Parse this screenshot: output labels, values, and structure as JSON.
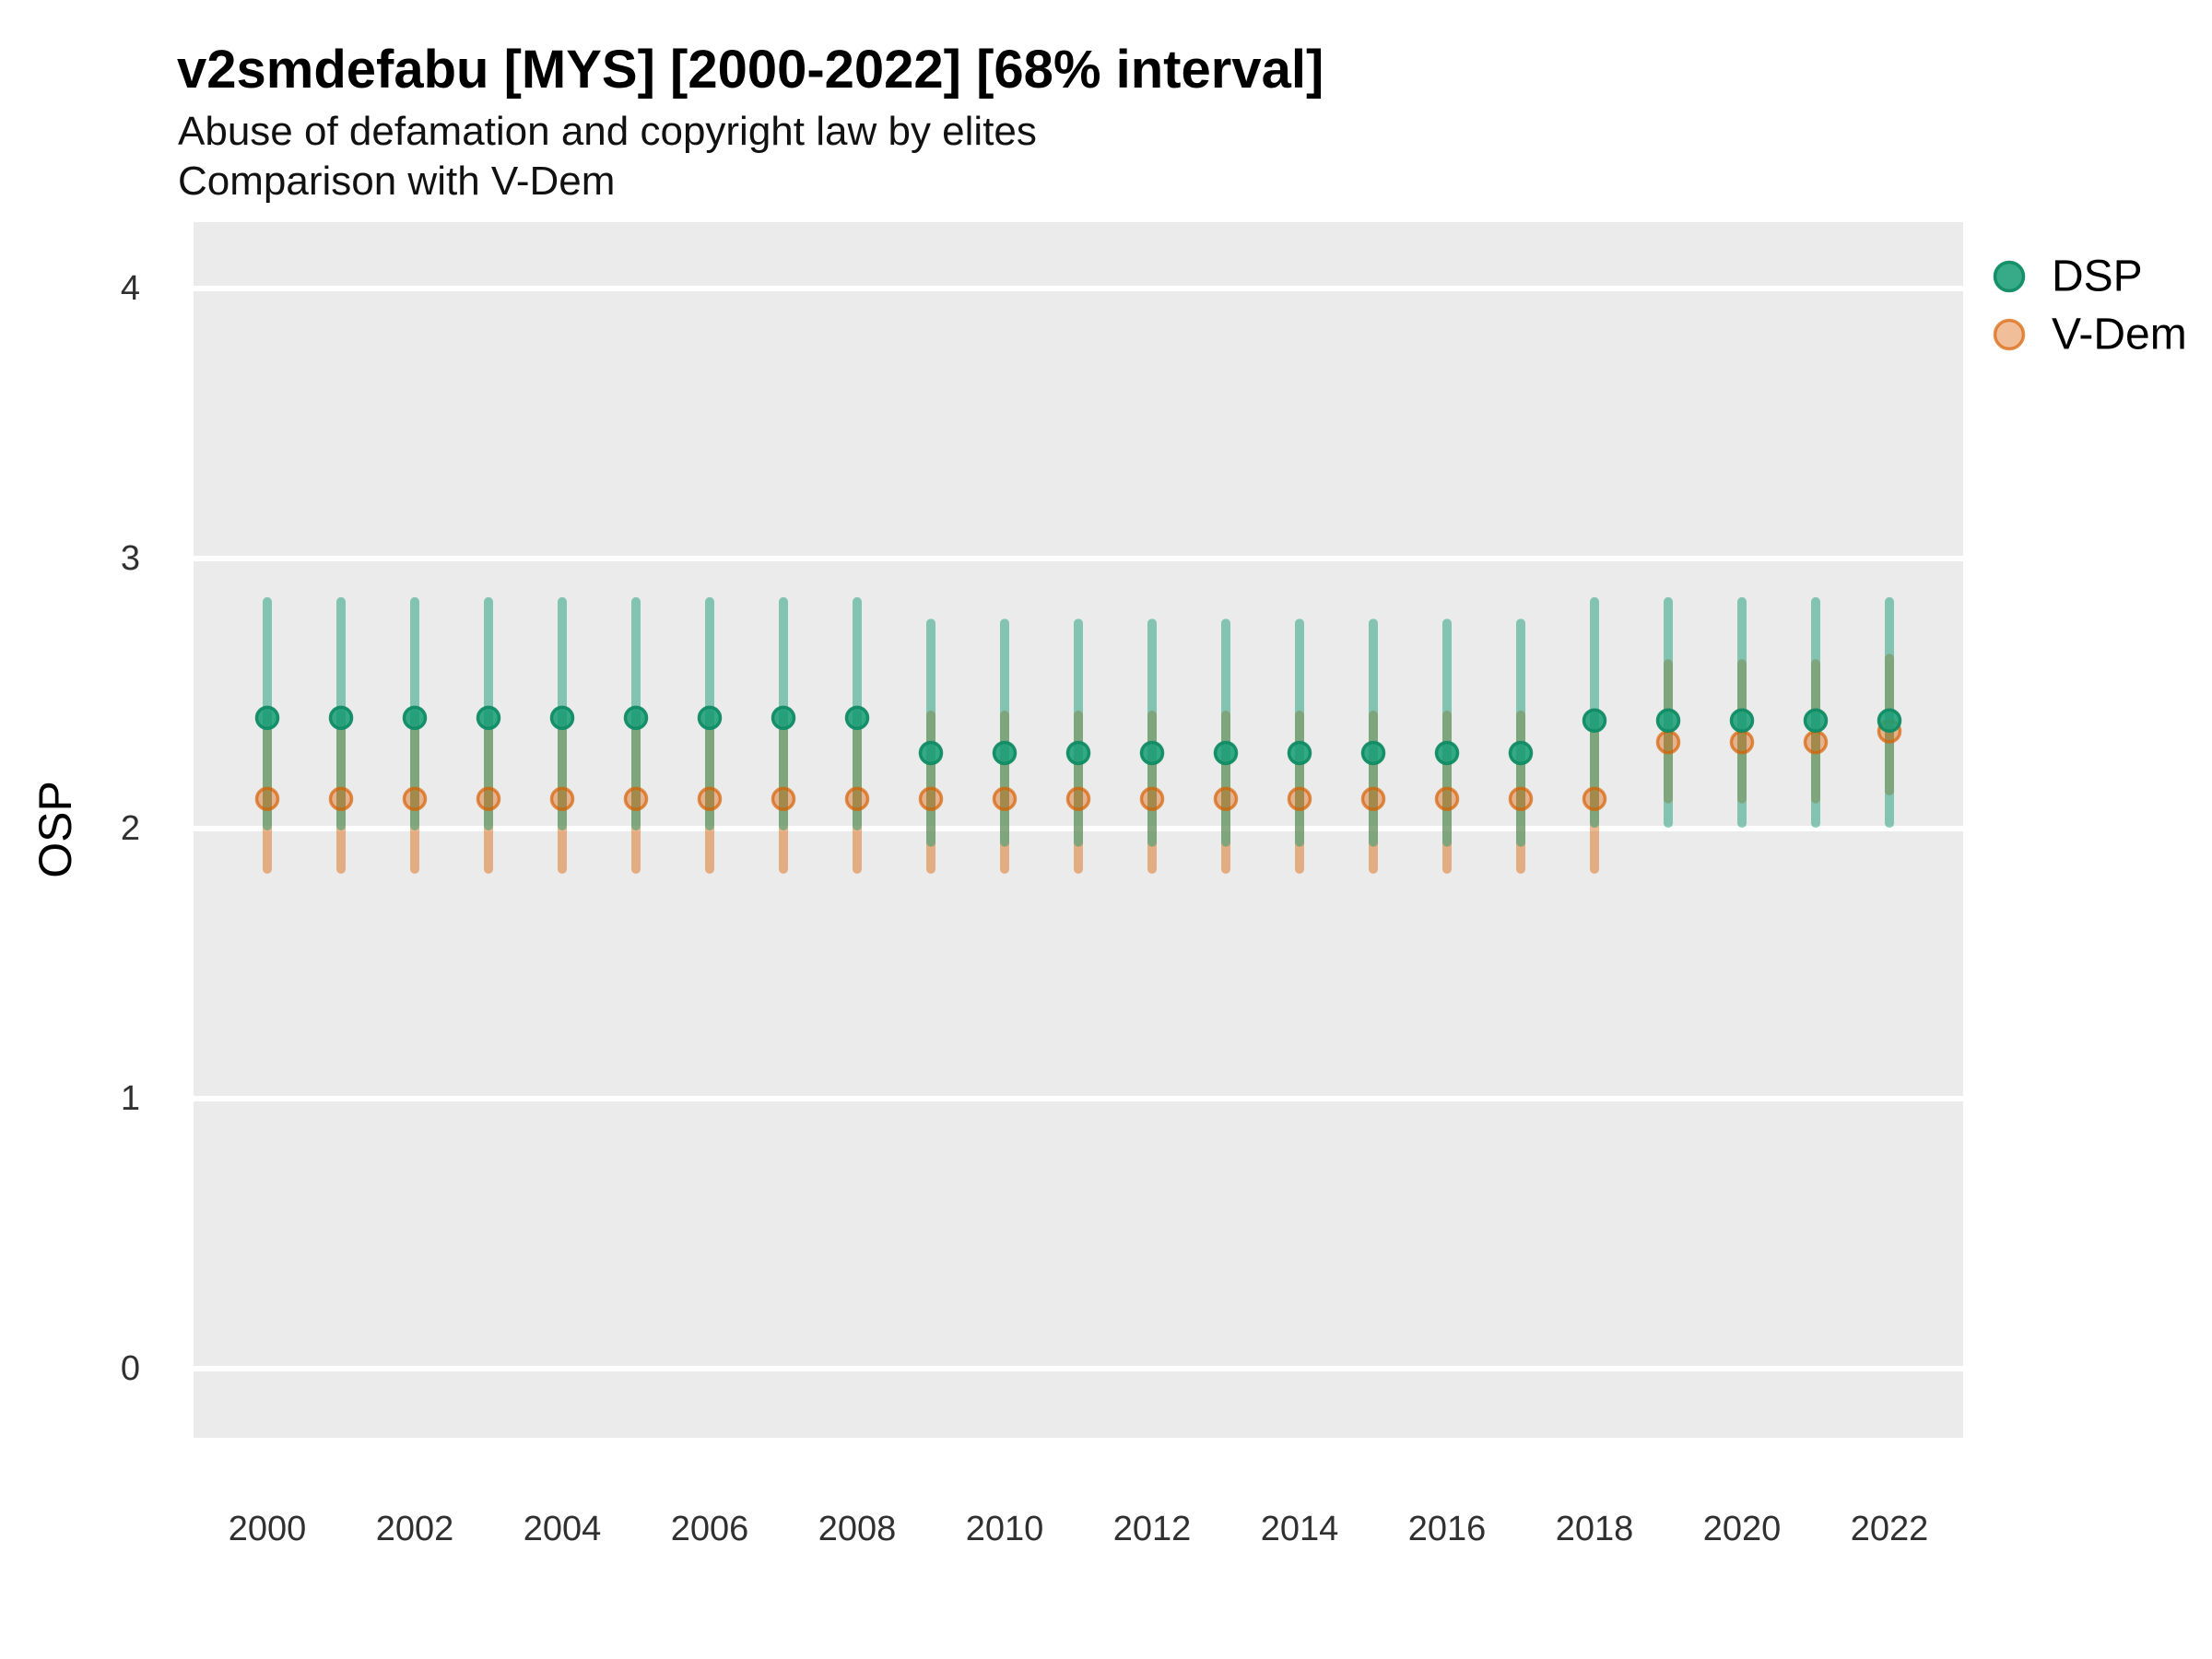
{
  "header": {
    "title": "v2smdefabu [MYS] [2000-2022] [68% interval]",
    "subtitle_line1": "Abuse of defamation and copyright law by elites",
    "subtitle_line2": "Comparison with V-Dem"
  },
  "axes": {
    "y_title": "OSP",
    "y_tick_labels": [
      "4",
      "3",
      "2",
      "1",
      "0"
    ],
    "x_tick_labels": [
      "2000",
      "2002",
      "2004",
      "2006",
      "2008",
      "2010",
      "2012",
      "2014",
      "2016",
      "2018",
      "2020",
      "2022"
    ]
  },
  "legend": {
    "position": "right",
    "entries": [
      {
        "label": "DSP",
        "color": "#1b9e77"
      },
      {
        "label": "V-Dem",
        "color": "#d95f02"
      }
    ]
  },
  "colors": {
    "dsp": "#1b9e77",
    "vdem": "#d95f02",
    "panel_background": "#ebebeb",
    "gridline": "#ffffff",
    "tick_label": "#303030"
  },
  "chart_data": {
    "type": "scatter",
    "title": "v2smdefabu [MYS] [2000-2022] [68% interval]",
    "subtitle": [
      "Abuse of defamation and copyright law by elites",
      "Comparison with V-Dem"
    ],
    "xlabel": "",
    "ylabel": "OSP",
    "x": [
      2000,
      2001,
      2002,
      2003,
      2004,
      2005,
      2006,
      2007,
      2008,
      2009,
      2010,
      2011,
      2012,
      2013,
      2014,
      2015,
      2016,
      2017,
      2018,
      2019,
      2020,
      2021,
      2022
    ],
    "x_ticks": [
      2000,
      2002,
      2004,
      2006,
      2008,
      2010,
      2012,
      2014,
      2016,
      2018,
      2020,
      2022
    ],
    "y_ticks": [
      0,
      1,
      2,
      3,
      4
    ],
    "ylim": [
      -0.26,
      4.25
    ],
    "grid": "horizontal major gridlines, white on gray panel",
    "legend_position": "right",
    "interval_note": "68% interval error bars",
    "series": [
      {
        "name": "DSP",
        "color": "#1b9e77",
        "points": [
          {
            "year": 2000,
            "est": 2.41,
            "lo": 2.01,
            "hi": 2.84
          },
          {
            "year": 2001,
            "est": 2.41,
            "lo": 2.01,
            "hi": 2.84
          },
          {
            "year": 2002,
            "est": 2.41,
            "lo": 2.01,
            "hi": 2.84
          },
          {
            "year": 2003,
            "est": 2.41,
            "lo": 2.01,
            "hi": 2.84
          },
          {
            "year": 2004,
            "est": 2.41,
            "lo": 2.01,
            "hi": 2.84
          },
          {
            "year": 2005,
            "est": 2.41,
            "lo": 2.01,
            "hi": 2.84
          },
          {
            "year": 2006,
            "est": 2.41,
            "lo": 2.01,
            "hi": 2.84
          },
          {
            "year": 2007,
            "est": 2.41,
            "lo": 2.01,
            "hi": 2.84
          },
          {
            "year": 2008,
            "est": 2.41,
            "lo": 2.01,
            "hi": 2.84
          },
          {
            "year": 2009,
            "est": 2.28,
            "lo": 1.95,
            "hi": 2.76
          },
          {
            "year": 2010,
            "est": 2.28,
            "lo": 1.95,
            "hi": 2.76
          },
          {
            "year": 2011,
            "est": 2.28,
            "lo": 1.95,
            "hi": 2.76
          },
          {
            "year": 2012,
            "est": 2.28,
            "lo": 1.95,
            "hi": 2.76
          },
          {
            "year": 2013,
            "est": 2.28,
            "lo": 1.95,
            "hi": 2.76
          },
          {
            "year": 2014,
            "est": 2.28,
            "lo": 1.95,
            "hi": 2.76
          },
          {
            "year": 2015,
            "est": 2.28,
            "lo": 1.95,
            "hi": 2.76
          },
          {
            "year": 2016,
            "est": 2.28,
            "lo": 1.95,
            "hi": 2.76
          },
          {
            "year": 2017,
            "est": 2.28,
            "lo": 1.95,
            "hi": 2.76
          },
          {
            "year": 2018,
            "est": 2.4,
            "lo": 2.02,
            "hi": 2.84
          },
          {
            "year": 2019,
            "est": 2.4,
            "lo": 2.02,
            "hi": 2.84
          },
          {
            "year": 2020,
            "est": 2.4,
            "lo": 2.02,
            "hi": 2.84
          },
          {
            "year": 2021,
            "est": 2.4,
            "lo": 2.02,
            "hi": 2.84
          },
          {
            "year": 2022,
            "est": 2.4,
            "lo": 2.02,
            "hi": 2.84
          }
        ]
      },
      {
        "name": "V-Dem",
        "color": "#d95f02",
        "points": [
          {
            "year": 2000,
            "est": 2.11,
            "lo": 1.85,
            "hi": 2.42
          },
          {
            "year": 2001,
            "est": 2.11,
            "lo": 1.85,
            "hi": 2.42
          },
          {
            "year": 2002,
            "est": 2.11,
            "lo": 1.85,
            "hi": 2.42
          },
          {
            "year": 2003,
            "est": 2.11,
            "lo": 1.85,
            "hi": 2.42
          },
          {
            "year": 2004,
            "est": 2.11,
            "lo": 1.85,
            "hi": 2.42
          },
          {
            "year": 2005,
            "est": 2.11,
            "lo": 1.85,
            "hi": 2.42
          },
          {
            "year": 2006,
            "est": 2.11,
            "lo": 1.85,
            "hi": 2.42
          },
          {
            "year": 2007,
            "est": 2.11,
            "lo": 1.85,
            "hi": 2.42
          },
          {
            "year": 2008,
            "est": 2.11,
            "lo": 1.85,
            "hi": 2.42
          },
          {
            "year": 2009,
            "est": 2.11,
            "lo": 1.85,
            "hi": 2.42
          },
          {
            "year": 2010,
            "est": 2.11,
            "lo": 1.85,
            "hi": 2.42
          },
          {
            "year": 2011,
            "est": 2.11,
            "lo": 1.85,
            "hi": 2.42
          },
          {
            "year": 2012,
            "est": 2.11,
            "lo": 1.85,
            "hi": 2.42
          },
          {
            "year": 2013,
            "est": 2.11,
            "lo": 1.85,
            "hi": 2.42
          },
          {
            "year": 2014,
            "est": 2.11,
            "lo": 1.85,
            "hi": 2.42
          },
          {
            "year": 2015,
            "est": 2.11,
            "lo": 1.85,
            "hi": 2.42
          },
          {
            "year": 2016,
            "est": 2.11,
            "lo": 1.85,
            "hi": 2.42
          },
          {
            "year": 2017,
            "est": 2.11,
            "lo": 1.85,
            "hi": 2.42
          },
          {
            "year": 2018,
            "est": 2.11,
            "lo": 1.85,
            "hi": 2.42
          },
          {
            "year": 2019,
            "est": 2.32,
            "lo": 2.11,
            "hi": 2.61
          },
          {
            "year": 2020,
            "est": 2.32,
            "lo": 2.11,
            "hi": 2.61
          },
          {
            "year": 2021,
            "est": 2.32,
            "lo": 2.11,
            "hi": 2.61
          },
          {
            "year": 2022,
            "est": 2.36,
            "lo": 2.14,
            "hi": 2.63
          }
        ]
      }
    ]
  }
}
